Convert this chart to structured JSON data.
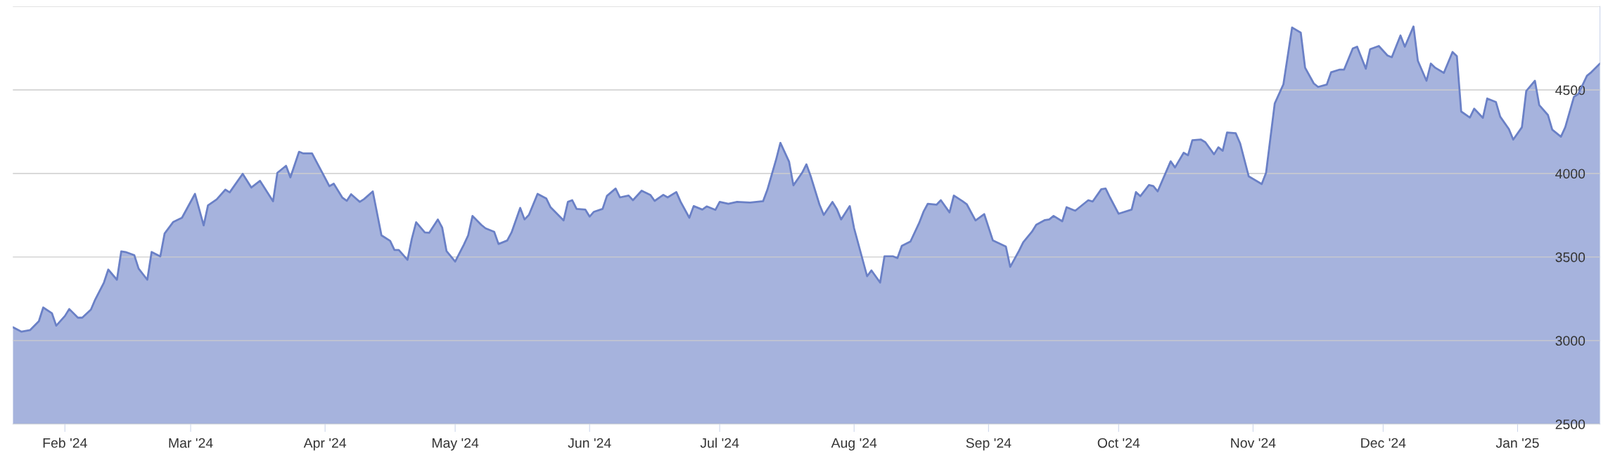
{
  "chart_data": {
    "type": "area",
    "x": [
      "2024-01-20",
      "2024-01-22",
      "2024-01-24",
      "2024-01-26",
      "2024-01-27",
      "2024-01-29",
      "2024-01-30",
      "2024-02-01",
      "2024-02-02",
      "2024-02-04",
      "2024-02-05",
      "2024-02-07",
      "2024-02-08",
      "2024-02-10",
      "2024-02-11",
      "2024-02-13",
      "2024-02-14",
      "2024-02-15",
      "2024-02-17",
      "2024-02-18",
      "2024-02-20",
      "2024-02-21",
      "2024-02-23",
      "2024-02-24",
      "2024-02-26",
      "2024-02-28",
      "2024-03-02",
      "2024-03-04",
      "2024-03-05",
      "2024-03-07",
      "2024-03-09",
      "2024-03-10",
      "2024-03-13",
      "2024-03-15",
      "2024-03-17",
      "2024-03-20",
      "2024-03-21",
      "2024-03-23",
      "2024-03-24",
      "2024-03-26",
      "2024-03-27",
      "2024-03-29",
      "2024-03-30",
      "2024-04-02",
      "2024-04-03",
      "2024-04-05",
      "2024-04-06",
      "2024-04-07",
      "2024-04-09",
      "2024-04-10",
      "2024-04-12",
      "2024-04-14",
      "2024-04-16",
      "2024-04-17",
      "2024-04-18",
      "2024-04-20",
      "2024-04-21",
      "2024-04-22",
      "2024-04-24",
      "2024-04-25",
      "2024-04-27",
      "2024-04-28",
      "2024-04-29",
      "2024-05-01",
      "2024-05-03",
      "2024-05-04",
      "2024-05-05",
      "2024-05-07",
      "2024-05-08",
      "2024-05-10",
      "2024-05-11",
      "2024-05-13",
      "2024-05-14",
      "2024-05-16",
      "2024-05-17",
      "2024-05-18",
      "2024-05-20",
      "2024-05-22",
      "2024-05-23",
      "2024-05-26",
      "2024-05-27",
      "2024-05-28",
      "2024-05-29",
      "2024-05-31",
      "2024-06-01",
      "2024-06-02",
      "2024-06-04",
      "2024-06-05",
      "2024-06-07",
      "2024-06-08",
      "2024-06-10",
      "2024-06-11",
      "2024-06-13",
      "2024-06-15",
      "2024-06-16",
      "2024-06-18",
      "2024-06-19",
      "2024-06-21",
      "2024-06-22",
      "2024-06-24",
      "2024-06-25",
      "2024-06-27",
      "2024-06-28",
      "2024-06-30",
      "2024-07-01",
      "2024-07-03",
      "2024-07-05",
      "2024-07-08",
      "2024-07-11",
      "2024-07-12",
      "2024-07-14",
      "2024-07-15",
      "2024-07-17",
      "2024-07-18",
      "2024-07-20",
      "2024-07-21",
      "2024-07-22",
      "2024-07-24",
      "2024-07-25",
      "2024-07-27",
      "2024-07-28",
      "2024-07-29",
      "2024-07-31",
      "2024-08-01",
      "2024-08-04",
      "2024-08-05",
      "2024-08-07",
      "2024-08-08",
      "2024-08-10",
      "2024-08-11",
      "2024-08-12",
      "2024-08-14",
      "2024-08-16",
      "2024-08-17",
      "2024-08-18",
      "2024-08-20",
      "2024-08-21",
      "2024-08-23",
      "2024-08-24",
      "2024-08-26",
      "2024-08-27",
      "2024-08-29",
      "2024-08-31",
      "2024-09-02",
      "2024-09-05",
      "2024-09-06",
      "2024-09-08",
      "2024-09-09",
      "2024-09-11",
      "2024-09-12",
      "2024-09-14",
      "2024-09-15",
      "2024-09-16",
      "2024-09-18",
      "2024-09-19",
      "2024-09-21",
      "2024-09-24",
      "2024-09-25",
      "2024-09-27",
      "2024-09-28",
      "2024-09-29",
      "2024-10-01",
      "2024-10-04",
      "2024-10-05",
      "2024-10-06",
      "2024-10-08",
      "2024-10-09",
      "2024-10-10",
      "2024-10-13",
      "2024-10-14",
      "2024-10-16",
      "2024-10-17",
      "2024-10-18",
      "2024-10-20",
      "2024-10-21",
      "2024-10-23",
      "2024-10-24",
      "2024-10-25",
      "2024-10-26",
      "2024-10-28",
      "2024-10-29",
      "2024-10-31",
      "2024-11-03",
      "2024-11-04",
      "2024-11-06",
      "2024-11-08",
      "2024-11-10",
      "2024-11-12",
      "2024-11-13",
      "2024-11-15",
      "2024-11-16",
      "2024-11-18",
      "2024-11-19",
      "2024-11-21",
      "2024-11-22",
      "2024-11-24",
      "2024-11-25",
      "2024-11-27",
      "2024-11-28",
      "2024-11-30",
      "2024-12-02",
      "2024-12-03",
      "2024-12-05",
      "2024-12-06",
      "2024-12-08",
      "2024-12-09",
      "2024-12-11",
      "2024-12-12",
      "2024-12-13",
      "2024-12-15",
      "2024-12-17",
      "2024-12-18",
      "2024-12-19",
      "2024-12-21",
      "2024-12-22",
      "2024-12-24",
      "2024-12-25",
      "2024-12-27",
      "2024-12-28",
      "2024-12-30",
      "2024-12-31",
      "2025-01-02",
      "2025-01-03",
      "2025-01-05",
      "2025-01-06",
      "2025-01-08",
      "2025-01-09",
      "2025-01-11",
      "2025-01-12",
      "2025-01-14",
      "2025-01-15",
      "2025-01-17",
      "2025-01-18",
      "2025-01-20"
    ],
    "series": [
      {
        "color": "#6a80c6",
        "values": [
          3080,
          3053,
          3063,
          3116,
          3198,
          3164,
          3089,
          3147,
          3189,
          3137,
          3137,
          3185,
          3246,
          3347,
          3425,
          3364,
          3534,
          3530,
          3511,
          3431,
          3364,
          3530,
          3504,
          3641,
          3710,
          3735,
          3878,
          3689,
          3809,
          3845,
          3903,
          3887,
          3998,
          3916,
          3956,
          3834,
          4004,
          4046,
          3977,
          4130,
          4120,
          4120,
          4071,
          3924,
          3939,
          3855,
          3836,
          3876,
          3830,
          3847,
          3893,
          3630,
          3597,
          3542,
          3542,
          3483,
          3609,
          3708,
          3647,
          3645,
          3725,
          3677,
          3536,
          3473,
          3574,
          3630,
          3746,
          3693,
          3672,
          3651,
          3578,
          3599,
          3647,
          3794,
          3725,
          3752,
          3878,
          3851,
          3798,
          3719,
          3830,
          3840,
          3788,
          3784,
          3742,
          3771,
          3788,
          3866,
          3910,
          3857,
          3868,
          3840,
          3897,
          3872,
          3836,
          3872,
          3857,
          3889,
          3830,
          3735,
          3805,
          3784,
          3803,
          3782,
          3830,
          3819,
          3830,
          3826,
          3834,
          3903,
          4082,
          4183,
          4071,
          3929,
          4004,
          4055,
          3983,
          3815,
          3752,
          3830,
          3788,
          3725,
          3805,
          3672,
          3385,
          3420,
          3347,
          3504,
          3504,
          3494,
          3567,
          3593,
          3704,
          3771,
          3819,
          3813,
          3840,
          3767,
          3868,
          3834,
          3815,
          3719,
          3757,
          3599,
          3563,
          3441,
          3536,
          3588,
          3651,
          3693,
          3721,
          3725,
          3746,
          3714,
          3798,
          3777,
          3840,
          3832,
          3906,
          3910,
          3857,
          3759,
          3784,
          3889,
          3864,
          3931,
          3925,
          3893,
          4073,
          4036,
          4124,
          4109,
          4199,
          4203,
          4187,
          4115,
          4157,
          4136,
          4245,
          4241,
          4182,
          3983,
          3937,
          4004,
          4419,
          4534,
          4874,
          4843,
          4633,
          4539,
          4518,
          4532,
          4606,
          4622,
          4622,
          4748,
          4759,
          4627,
          4744,
          4763,
          4706,
          4696,
          4826,
          4759,
          4880,
          4675,
          4555,
          4658,
          4633,
          4602,
          4727,
          4702,
          4371,
          4335,
          4388,
          4333,
          4449,
          4428,
          4340,
          4266,
          4203,
          4277,
          4493,
          4555,
          4409,
          4350,
          4262,
          4220,
          4277,
          4459,
          4476,
          4585,
          4606,
          4658
        ]
      }
    ],
    "xlim": [
      "2024-01-20",
      "2025-01-20"
    ],
    "xticks": [
      {
        "value": "2024-02-01",
        "label": "Feb '24"
      },
      {
        "value": "2024-03-01",
        "label": "Mar '24"
      },
      {
        "value": "2024-04-01",
        "label": "Apr '24"
      },
      {
        "value": "2024-05-01",
        "label": "May '24"
      },
      {
        "value": "2024-06-01",
        "label": "Jun '24"
      },
      {
        "value": "2024-07-01",
        "label": "Jul '24"
      },
      {
        "value": "2024-08-01",
        "label": "Aug '24"
      },
      {
        "value": "2024-09-01",
        "label": "Sep '24"
      },
      {
        "value": "2024-10-01",
        "label": "Oct '24"
      },
      {
        "value": "2024-11-01",
        "label": "Nov '24"
      },
      {
        "value": "2024-12-01",
        "label": "Dec '24"
      },
      {
        "value": "2025-01-01",
        "label": "Jan '25"
      }
    ],
    "ylim": [
      2500,
      5000
    ],
    "yticks": [
      2500,
      3000,
      3500,
      4000,
      4500,
      {
        "value": 5000,
        "label": null
      }
    ],
    "grid": "y",
    "legend": false,
    "marker": "none",
    "line_style": "solid"
  }
}
